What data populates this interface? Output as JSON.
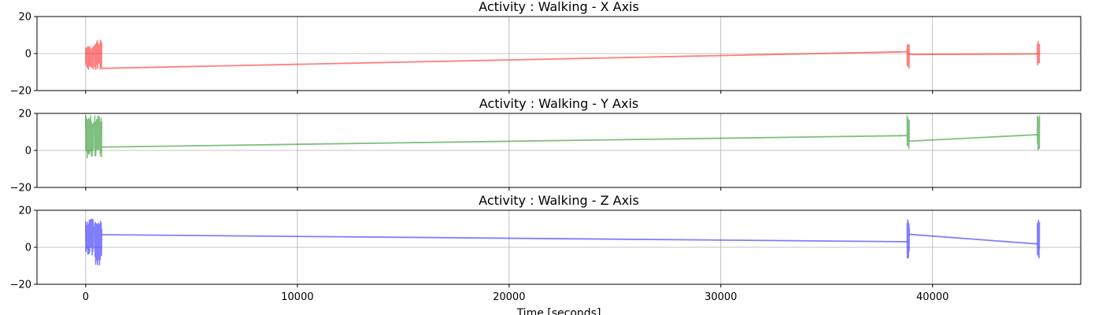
{
  "chart_data": {
    "type": "line",
    "xlabel": "Time [seconds]",
    "xlim": [
      -2300,
      47000
    ],
    "x_ticks": [
      0,
      10000,
      20000,
      30000,
      40000
    ],
    "x_tick_labels": [
      "0",
      "10000",
      "20000",
      "30000",
      "40000"
    ],
    "grid": true,
    "subplots": [
      {
        "title": "Activity : Walking - X Axis",
        "ylim": [
          -20,
          20
        ],
        "y_ticks": [
          20,
          0,
          -20
        ],
        "y_tick_labels": [
          "20",
          "0",
          "−20"
        ],
        "color": "#ff0000",
        "alpha": 0.5,
        "bursts": [
          {
            "x_start": 0,
            "x_end": 380,
            "y_min": -9,
            "y_max": 5
          },
          {
            "x_start": 430,
            "x_end": 760,
            "y_min": -9,
            "y_max": 7.5
          },
          {
            "x_start": 38800,
            "x_end": 38900,
            "y_min": -8.5,
            "y_max": 5.5
          },
          {
            "x_start": 44950,
            "x_end": 45050,
            "y_min": -6.5,
            "y_max": 7.5
          }
        ],
        "connectors": [
          {
            "x": [
              760,
              38800
            ],
            "y": [
              -8,
              1
            ]
          },
          {
            "x": [
              38900,
              44950
            ],
            "y": [
              -0.5,
              -0.2
            ]
          }
        ]
      },
      {
        "title": "Activity : Walking - Y Axis",
        "ylim": [
          -20,
          20
        ],
        "y_ticks": [
          20,
          0,
          -20
        ],
        "y_tick_labels": [
          "20",
          "0",
          "−20"
        ],
        "color": "#008000",
        "alpha": 0.5,
        "bursts": [
          {
            "x_start": 0,
            "x_end": 380,
            "y_min": -4.5,
            "y_max": 19
          },
          {
            "x_start": 430,
            "x_end": 760,
            "y_min": -3.5,
            "y_max": 19
          },
          {
            "x_start": 38800,
            "x_end": 38900,
            "y_min": 0.5,
            "y_max": 19
          },
          {
            "x_start": 44950,
            "x_end": 45050,
            "y_min": 0,
            "y_max": 19
          }
        ],
        "connectors": [
          {
            "x": [
              760,
              38800
            ],
            "y": [
              1.8,
              8
            ]
          },
          {
            "x": [
              38900,
              44950
            ],
            "y": [
              5,
              8.5
            ]
          }
        ]
      },
      {
        "title": "Activity : Walking - Z Axis",
        "ylim": [
          -20,
          20
        ],
        "y_ticks": [
          20,
          0,
          -20
        ],
        "y_tick_labels": [
          "20",
          "0",
          "−20"
        ],
        "color": "#0000ff",
        "alpha": 0.5,
        "bursts": [
          {
            "x_start": 0,
            "x_end": 380,
            "y_min": -4.5,
            "y_max": 16
          },
          {
            "x_start": 430,
            "x_end": 760,
            "y_min": -10,
            "y_max": 15.5
          },
          {
            "x_start": 38800,
            "x_end": 38900,
            "y_min": -6.5,
            "y_max": 15.5
          },
          {
            "x_start": 44950,
            "x_end": 45050,
            "y_min": -7,
            "y_max": 15.5
          }
        ],
        "connectors": [
          {
            "x": [
              760,
              38800
            ],
            "y": [
              6.8,
              3
            ]
          },
          {
            "x": [
              38900,
              44950
            ],
            "y": [
              7,
              1.8
            ]
          }
        ]
      }
    ]
  }
}
